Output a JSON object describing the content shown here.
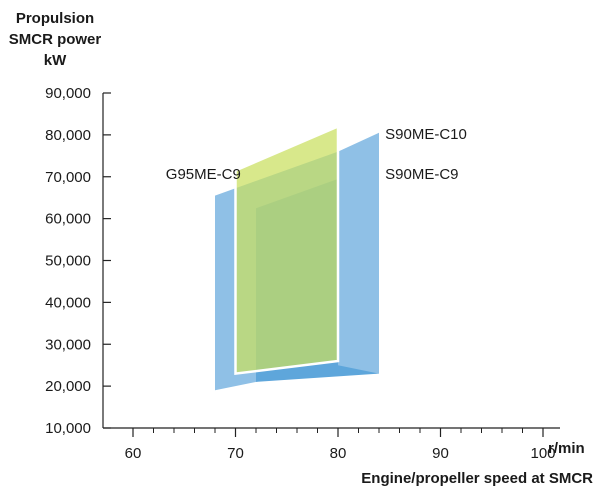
{
  "chart_data": {
    "type": "area",
    "ylabel_lines": [
      "Propulsion",
      "SMCR power",
      "kW"
    ],
    "xlabel": "Engine/propeller speed at SMCR",
    "x_unit": "r/min",
    "xlim": [
      60,
      100
    ],
    "ylim": [
      10000,
      90000
    ],
    "x_ticks": [
      60,
      70,
      80,
      90,
      100
    ],
    "x_tick_labels": [
      "60",
      "70",
      "80",
      "90",
      "100"
    ],
    "y_ticks": [
      10000,
      20000,
      30000,
      40000,
      50000,
      60000,
      70000,
      80000,
      90000
    ],
    "y_tick_labels": [
      "10,000",
      "20,000",
      "30,000",
      "40,000",
      "50,000",
      "60,000",
      "70,000",
      "80,000",
      "90,000"
    ],
    "grid": false,
    "legend": "none",
    "series": [
      {
        "name": "G95ME-C9",
        "color": "#8fc0e6",
        "polygon": [
          [
            68,
            65500
          ],
          [
            80,
            76000
          ],
          [
            80,
            25000
          ],
          [
            68,
            19000
          ]
        ]
      },
      {
        "name": "S90ME-C9",
        "color": "#5ea6db",
        "polygon": [
          [
            72,
            62500
          ],
          [
            84,
            73000
          ],
          [
            84,
            23000
          ],
          [
            72,
            21000
          ]
        ]
      },
      {
        "name": "S90ME-C10",
        "color": "#8fc0e6",
        "polygon": [
          [
            80,
            76000
          ],
          [
            84,
            80500
          ],
          [
            84,
            23000
          ],
          [
            80,
            25000
          ]
        ]
      },
      {
        "name": "",
        "color": "#c9df5e",
        "polygon": [
          [
            70,
            71500
          ],
          [
            80,
            82000
          ],
          [
            80,
            26000
          ],
          [
            70,
            23000
          ]
        ]
      }
    ],
    "annotations": [
      {
        "text": "G95ME-C9",
        "x": 63.2,
        "y": 69500
      },
      {
        "text": "S90ME-C10",
        "x": 84.6,
        "y": 79000
      },
      {
        "text": "S90ME-C9",
        "x": 84.6,
        "y": 69500
      }
    ]
  }
}
